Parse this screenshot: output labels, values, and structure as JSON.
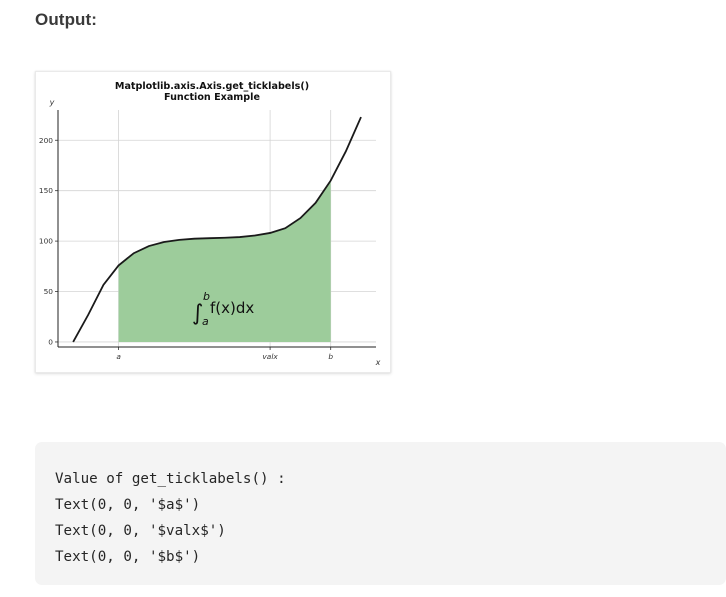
{
  "section": {
    "heading": "Output:"
  },
  "chart_data": {
    "type": "line",
    "title_line1": "Matplotlib.axis.Axis.get_ticklabels()",
    "title_line2": "Function Example",
    "xlabel": "x",
    "ylabel": "y",
    "xlim": [
      0,
      10
    ],
    "ylim": [
      -5,
      230
    ],
    "yticks": [
      0,
      50,
      100,
      150,
      200
    ],
    "xticks": [
      {
        "value": 2,
        "label": "a"
      },
      {
        "value": 7,
        "label": "valx"
      },
      {
        "value": 9,
        "label": "b"
      }
    ],
    "curve": {
      "x": [
        0.5,
        1.0,
        1.5,
        2.0,
        2.5,
        3.0,
        3.5,
        4.0,
        4.5,
        5.0,
        5.5,
        6.0,
        6.5,
        7.0,
        7.5,
        8.0,
        8.5,
        9.0,
        9.5,
        10.0
      ],
      "y": [
        0,
        27.1,
        56.6,
        75.9,
        88.0,
        95.1,
        99.1,
        101.2,
        102.4,
        102.9,
        103.3,
        104.0,
        105.6,
        108.1,
        112.8,
        122.8,
        137.9,
        160.0,
        189.0,
        223.0
      ],
      "color": "#1a1a1a"
    },
    "shaded_region": {
      "from": 2,
      "to": 9,
      "color": "#9dcc9b"
    },
    "annotation": {
      "text": "∫",
      "upper": "b",
      "lower": "a",
      "expr": "f(x)dx",
      "at_x": 4.5,
      "at_y": 35
    },
    "grid": true
  },
  "code_output": {
    "lines": [
      "Value of get_ticklabels() :",
      "Text(0, 0, '$a$')",
      "Text(0, 0, '$valx$')",
      "Text(0, 0, '$b$')"
    ]
  }
}
